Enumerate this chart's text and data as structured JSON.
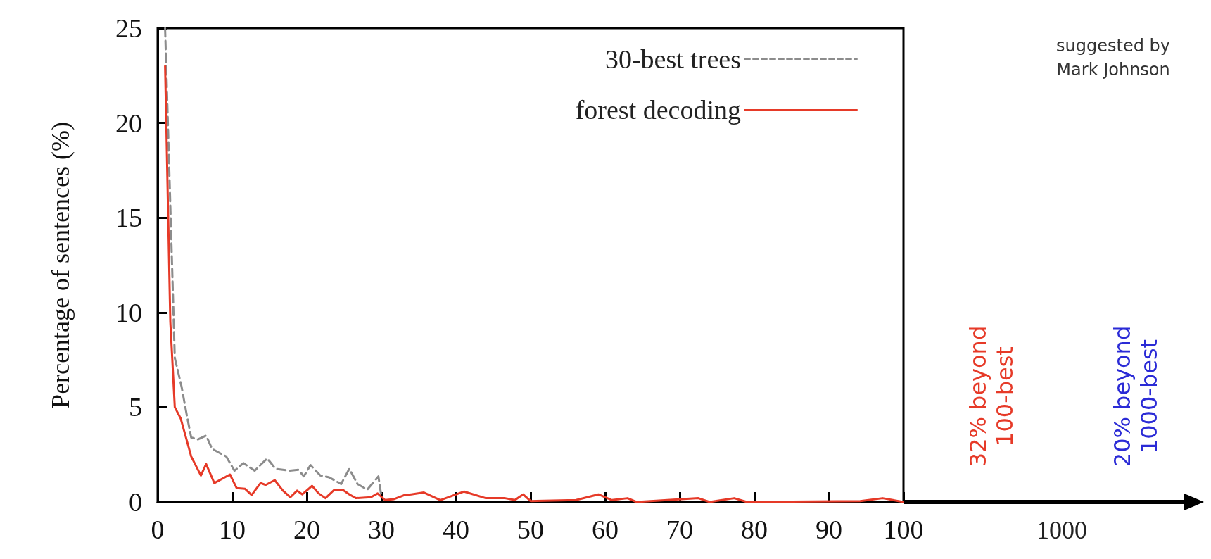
{
  "chart_data": {
    "type": "line",
    "ylabel": "Percentage of sentences (%)",
    "xlim": [
      0,
      100
    ],
    "ylim": [
      0,
      25
    ],
    "xticks": [
      0,
      10,
      20,
      30,
      40,
      50,
      60,
      70,
      80,
      90,
      100
    ],
    "yticks": [
      0,
      5,
      10,
      15,
      20,
      25
    ],
    "grid": false,
    "legend": "top right",
    "marker": "none",
    "series": [
      {
        "name": "30-best trees",
        "color": "#8c8c8c",
        "line_style": "dashed",
        "x": [
          1,
          2.3,
          3.2,
          3.9,
          4.5,
          5.4,
          6.5,
          7.3,
          9.2,
          10.3,
          11.5,
          13,
          14.7,
          15.8,
          17.7,
          18.9,
          19.6,
          20.5,
          21.8,
          23,
          24.6,
          25.7,
          26.8,
          28.1,
          29.6,
          30
        ],
        "values": [
          25,
          7.6,
          6.1,
          4.6,
          3.4,
          3.3,
          3.5,
          2.8,
          2.4,
          1.65,
          2.05,
          1.65,
          2.3,
          1.75,
          1.65,
          1.7,
          1.35,
          1.95,
          1.4,
          1.3,
          0.95,
          1.75,
          0.95,
          0.65,
          1.35,
          0.3
        ]
      },
      {
        "name": "forest decoding",
        "color": "#e63a28",
        "line_style": "solid",
        "x": [
          1,
          1.7,
          2.3,
          3.1,
          4.5,
          5.8,
          6.5,
          7.6,
          9.7,
          10.6,
          11.7,
          12.6,
          13.8,
          14.5,
          15.7,
          16.8,
          17.8,
          18.7,
          19.4,
          20.7,
          21.6,
          22.5,
          23.7,
          24.8,
          25.7,
          26.6,
          28.6,
          29.5,
          30.5,
          31.7,
          33,
          34,
          35.7,
          37.9,
          41.1,
          44,
          46.6,
          47.9,
          49,
          50,
          56.1,
          59.1,
          60.9,
          63,
          64.2,
          72.5,
          74,
          77.3,
          79,
          94.2,
          97.2,
          100
        ],
        "values": [
          23,
          9.5,
          5,
          4.4,
          2.4,
          1.4,
          2,
          1,
          1.45,
          0.73,
          0.7,
          0.37,
          1,
          0.9,
          1.15,
          0.6,
          0.25,
          0.6,
          0.4,
          0.85,
          0.45,
          0.2,
          0.65,
          0.65,
          0.4,
          0.2,
          0.25,
          0.45,
          0.1,
          0.15,
          0.35,
          0.4,
          0.5,
          0.1,
          0.55,
          0.2,
          0.2,
          0.1,
          0.4,
          0.05,
          0.1,
          0.4,
          0.1,
          0.2,
          0,
          0.2,
          0,
          0.2,
          0,
          0.05,
          0.2,
          0
        ]
      }
    ],
    "annotations": [
      "suggested by\nMark Johnson",
      "32% beyond\n100-best",
      "20% beyond\n1000-best",
      "1000"
    ]
  }
}
